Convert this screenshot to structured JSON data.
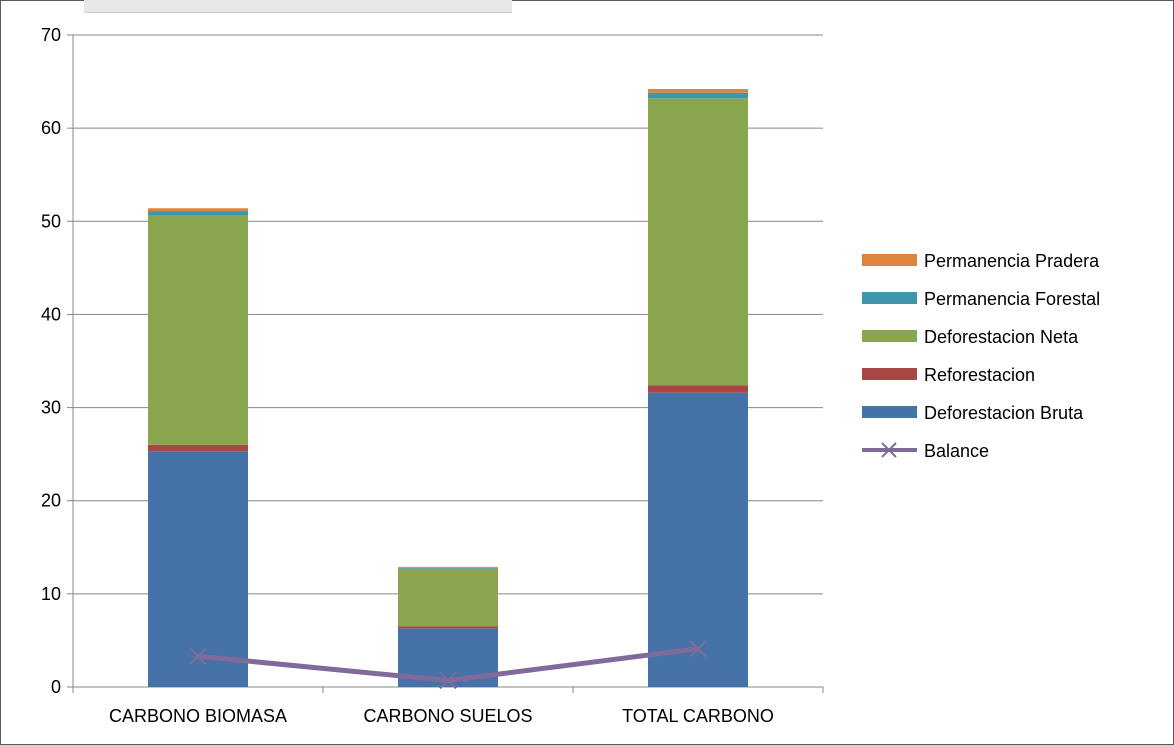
{
  "chart_data": {
    "type": "bar",
    "stacked": true,
    "categories": [
      "CARBONO BIOMASA",
      "CARBONO SUELOS",
      "TOTAL CARBONO"
    ],
    "ylim": [
      0,
      70
    ],
    "yticks": [
      0,
      10,
      20,
      30,
      40,
      50,
      60,
      70
    ],
    "grid": true,
    "legend_position": "right",
    "series": [
      {
        "name": "Deforestacion Bruta",
        "kind": "bar",
        "color": "#4573A7",
        "values": [
          25.3,
          6.3,
          31.6
        ]
      },
      {
        "name": "Reforestacion",
        "kind": "bar",
        "color": "#AA4644",
        "values": [
          0.7,
          0.2,
          0.8
        ]
      },
      {
        "name": "Deforestacion Neta",
        "kind": "bar",
        "color": "#89A54E",
        "values": [
          24.6,
          6.2,
          30.8
        ]
      },
      {
        "name": "Permanencia Forestal",
        "kind": "bar",
        "color": "#3D96AE",
        "values": [
          0.5,
          0.1,
          0.6
        ]
      },
      {
        "name": "Permanencia Pradera",
        "kind": "bar",
        "color": "#DB843D",
        "values": [
          0.3,
          0.1,
          0.4
        ]
      },
      {
        "name": "Balance",
        "kind": "line",
        "color": "#80699B",
        "marker": "x",
        "values": [
          3.3,
          0.7,
          4.1
        ]
      }
    ],
    "legend_order": [
      "Permanencia Pradera",
      "Permanencia Forestal",
      "Deforestacion Neta",
      "Reforestacion",
      "Deforestacion Bruta",
      "Balance"
    ]
  }
}
